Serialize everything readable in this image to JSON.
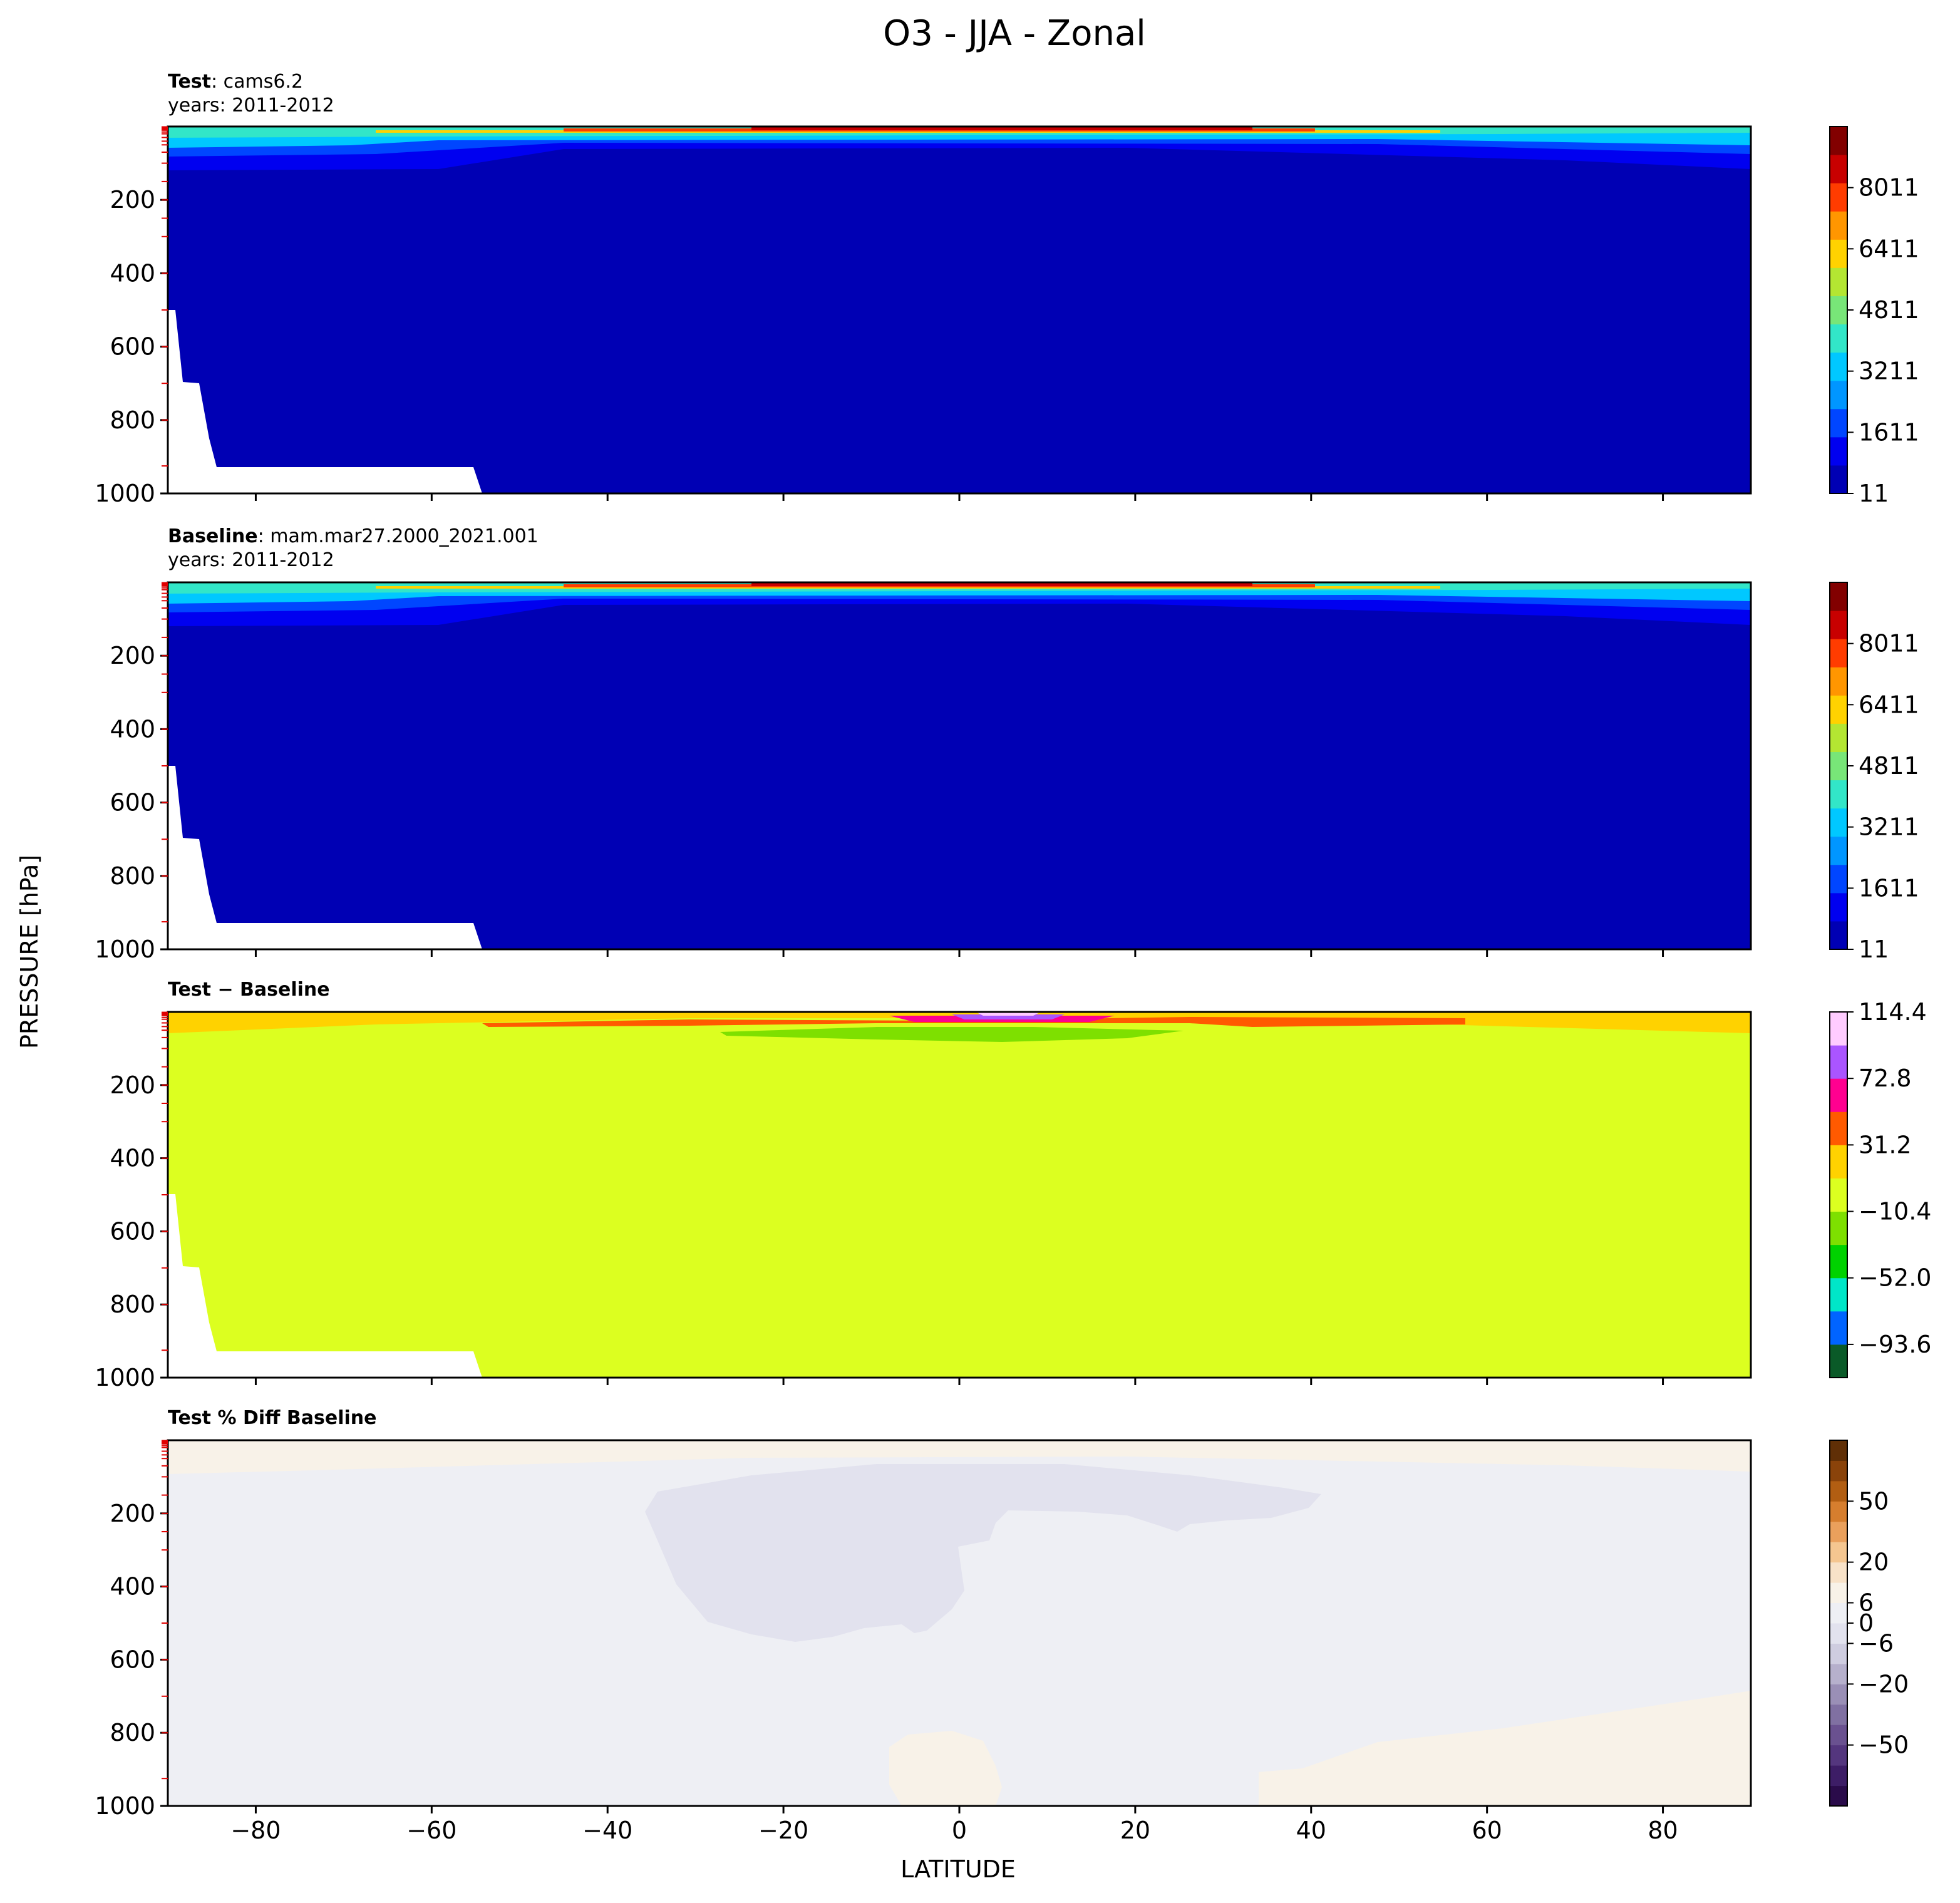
{
  "figure": {
    "title": "O3 - JJA - Zonal",
    "ylabel": "PRESSURE [hPa]",
    "xlabel": "LATITUDE"
  },
  "panels": [
    {
      "id": "test",
      "title_bold": "Test",
      "title_rest": ": cams6.2",
      "title_line2": "years: 2011-2012",
      "colorbar_ticks": [
        "8011",
        "6411",
        "4811",
        "3211",
        "1611",
        "11"
      ]
    },
    {
      "id": "baseline",
      "title_bold": "Baseline",
      "title_rest": ": mam.mar27.2000_2021.001",
      "title_line2": "years: 2011-2012",
      "colorbar_ticks": [
        "8011",
        "6411",
        "4811",
        "3211",
        "1611",
        "11"
      ]
    },
    {
      "id": "diff",
      "title_bold": "Test − Baseline",
      "title_rest": "",
      "title_line2": "",
      "colorbar_ticks": [
        "114.4",
        "72.8",
        "31.2",
        "−10.4",
        "−52.0",
        "−93.6"
      ]
    },
    {
      "id": "pctdiff",
      "title_bold": "Test % Diff Baseline",
      "title_rest": "",
      "title_line2": "",
      "colorbar_ticks": [
        "50",
        "20",
        "6",
        "0",
        "−6",
        "−20",
        "−50"
      ]
    }
  ],
  "chart_data": {
    "type": "heatmap",
    "x": {
      "label": "LATITUDE",
      "range": [
        -90,
        90
      ],
      "ticks": [
        -80,
        -60,
        -40,
        -20,
        0,
        20,
        40,
        60,
        80
      ]
    },
    "y": {
      "label": "PRESSURE [hPa]",
      "range": [
        1000,
        0
      ],
      "ticks": [
        200,
        400,
        600,
        800,
        1000
      ],
      "inverted": true
    },
    "panels": [
      {
        "name": "Test: cams6.2",
        "colorbar": {
          "levels": [
            11,
            811,
            1611,
            2411,
            3211,
            4011,
            4811,
            5611,
            6411,
            7211,
            8011,
            8811
          ],
          "colors": [
            "#0000b4",
            "#0000f0",
            "#0046ff",
            "#0096ff",
            "#00c8ff",
            "#32e6c8",
            "#78e678",
            "#b4e632",
            "#ffd200",
            "#ff9600",
            "#ff3c00",
            "#c80000",
            "#820000"
          ]
        },
        "approx_field": "~11-811 through troposphere; increasing aloft, peak >8011 near 0-10 hPa around equator"
      },
      {
        "name": "Baseline: mam.mar27.2000_2021.001",
        "colorbar": {
          "levels": [
            11,
            811,
            1611,
            2411,
            3211,
            4011,
            4811,
            5611,
            6411,
            7211,
            8011,
            8811
          ]
        },
        "approx_field": "similar to Test"
      },
      {
        "name": "Test − Baseline",
        "colorbar": {
          "levels": [
            -114.4,
            -93.6,
            -72.8,
            -52.0,
            -31.2,
            -10.4,
            10.4,
            31.2,
            52.0,
            72.8,
            93.6,
            114.4
          ]
        },
        "approx_field": "mostly -10.4 to 10.4; 10.4-31.2 near 50 hPa poleward; 31.2-52.0 near 20 hPa; up to >93.6 near 5 hPa at 5-15 N; -31.2 to -10.4 near 50 hPa tropics"
      },
      {
        "name": "Test % Diff Baseline",
        "colorbar": {
          "levels": [
            -50,
            -20,
            -6,
            0,
            6,
            20,
            50
          ]
        },
        "approx_field": "mostly -2 to 0; -6 to -2 region 200-550 hPa, -35 to 40 lat; 0 to 2 near top and near surface at -20 to 5 and 35 to 90 lat"
      }
    ]
  }
}
